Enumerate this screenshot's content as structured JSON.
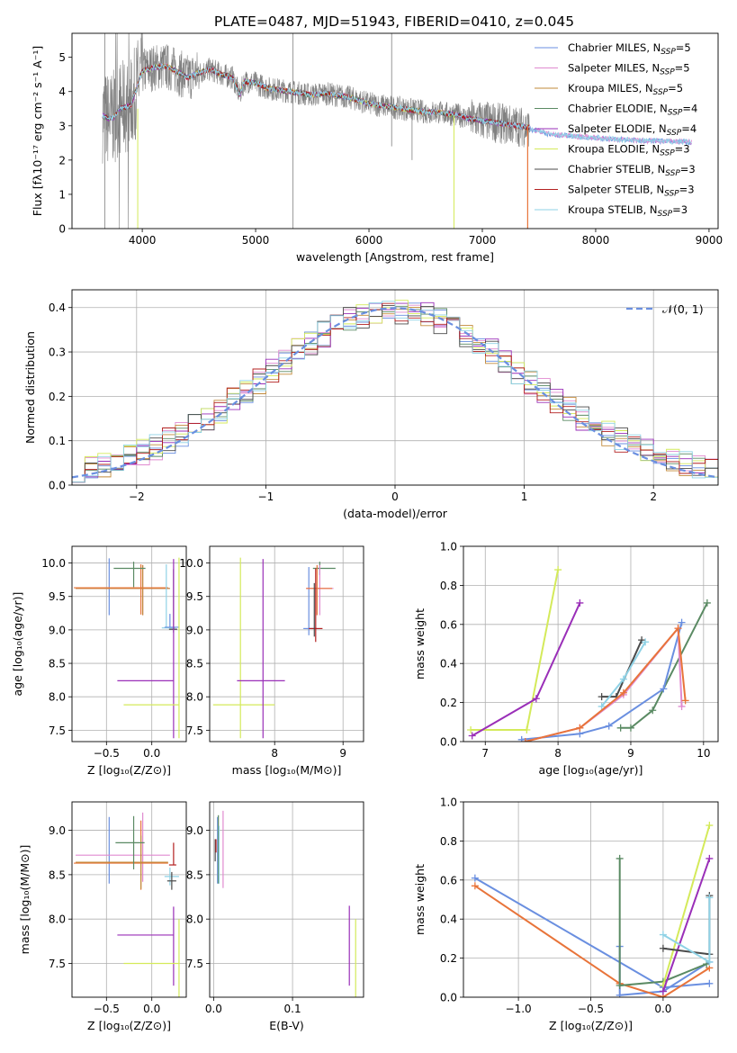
{
  "colors": {
    "Chabrier MILES": "#6a8fe0",
    "Salpeter MILES": "#e08ad0",
    "Kroupa MILES": "#c28a3a",
    "Chabrier ELODIE": "#5a8a63",
    "Salpeter ELODIE": "#9a2fb8",
    "Kroupa ELODIE": "#d4ea5a",
    "Chabrier STELIB": "#4a4a4a",
    "Salpeter STELIB": "#b32020",
    "Kroupa STELIB": "#8fd2e6",
    "orange": "#e8743a",
    "data": "#808080",
    "gaussian": "#6a8fe0"
  },
  "chart_data": [
    {
      "type": "line",
      "title": "PLATE=0487, MJD=51943, FIBERID=0410, z=0.045",
      "xlabel": "wavelength [Angstrom, rest frame]",
      "ylabel": "Flux [fλ10⁻¹⁷ erg cm⁻² s⁻¹ A⁻¹]",
      "xlim": [
        3380,
        9080
      ],
      "ylim": [
        0,
        5.7
      ],
      "xticks": [
        "4000",
        "5000",
        "6000",
        "7000",
        "8000",
        "9000"
      ],
      "yticks": [
        "0",
        "1",
        "2",
        "3",
        "4",
        "5"
      ],
      "legend": [
        "Chabrier MILES, N",
        "Salpeter MILES, N",
        "Kroupa MILES, N",
        "Chabrier ELODIE, N",
        "Salpeter ELODIE, N",
        "Kroupa ELODIE, N",
        "Chabrier STELIB, N",
        "Salpeter STELIB, N",
        "Kroupa STELIB, N"
      ],
      "legend_sub": "SSP",
      "legend_vals": [
        "=5",
        "=5",
        "=5",
        "=4",
        "=4",
        "=3",
        "=3",
        "=3",
        "=3"
      ],
      "legend_loc": "upper right",
      "continuum": {
        "x": [
          3650,
          3700,
          3750,
          3800,
          3900,
          4000,
          4100,
          4200,
          4300,
          4400,
          4500,
          4600,
          4700,
          4800,
          4860,
          4900,
          5000,
          5100,
          5200,
          5300,
          5400,
          5500,
          5600,
          5700,
          5800,
          5900,
          6000,
          6100,
          6200,
          6300,
          6400,
          6500,
          6600,
          6700,
          6800,
          6900,
          7000,
          7100,
          7200,
          7300,
          7400,
          7500,
          7600,
          7800,
          8000,
          8200,
          8400,
          8600,
          8800
        ],
        "y": [
          3.3,
          3.2,
          3.25,
          3.5,
          3.6,
          4.6,
          4.7,
          4.75,
          4.6,
          4.4,
          4.55,
          4.65,
          4.5,
          4.4,
          3.9,
          4.3,
          4.25,
          4.1,
          4.05,
          4.0,
          3.95,
          3.9,
          3.95,
          3.9,
          3.85,
          3.75,
          3.65,
          3.6,
          3.55,
          3.5,
          3.45,
          3.4,
          3.4,
          3.35,
          3.3,
          3.2,
          3.15,
          3.1,
          3.05,
          3.0,
          2.95,
          2.9,
          2.8,
          2.75,
          2.7,
          2.65,
          2.62,
          2.6,
          2.58
        ]
      },
      "model_ranges": [
        [
          3650,
          8850
        ],
        [
          3650,
          8850
        ],
        [
          3650,
          7420
        ],
        [
          3650,
          7420
        ],
        [
          3650,
          7420
        ],
        [
          3960,
          6750
        ],
        [
          3650,
          7420
        ],
        [
          3650,
          7420
        ],
        [
          3650,
          8850
        ]
      ],
      "data_range": [
        3650,
        7420
      ]
    },
    {
      "type": "step",
      "xlabel": "(data-model)/error",
      "ylabel": "Normed distribution",
      "xlim": [
        -2.5,
        2.5
      ],
      "ylim": [
        0,
        0.44
      ],
      "xticks": [
        "−2",
        "−1",
        "0",
        "1",
        "2"
      ],
      "yticks": [
        "0.0",
        "0.1",
        "0.2",
        "0.3",
        "0.4"
      ],
      "legend": [
        "𝒩(0, 1)"
      ],
      "legend_loc": "upper right",
      "bin_width": 0.1,
      "bin_start": -2.5
    },
    {
      "type": "errorbar",
      "xlabel": "Z [log₁₀(Z/Z⊙)]",
      "ylabel": "age  [log₁₀(age/yr)]",
      "xlim": [
        -0.88,
        0.38
      ],
      "ylim": [
        7.33,
        10.25
      ],
      "xticks": [
        "−0.5",
        "0.0"
      ],
      "yticks": [
        "7.5",
        "8.0",
        "8.5",
        "9.0",
        "9.5",
        "10.0"
      ],
      "points": [
        {
          "s": "Chabrier MILES",
          "x": -0.47,
          "y": 9.62,
          "xe": [
            0,
            0
          ],
          "ye": [
            0.4,
            0.45
          ]
        },
        {
          "s": "Salpeter MILES",
          "x": -0.1,
          "y": 9.62,
          "xe": [
            0.74,
            0.3
          ],
          "ye": [
            0.4,
            0.35
          ]
        },
        {
          "s": "Kroupa MILES",
          "x": -0.1,
          "y": 9.62,
          "xe": [
            0.74,
            0.3
          ],
          "ye": [
            0.4,
            0.35
          ]
        },
        {
          "s": "orange",
          "x": -0.12,
          "y": 9.63,
          "xe": [
            0.74,
            0.3
          ],
          "ye": [
            0.4,
            0.35
          ]
        },
        {
          "s": "Chabrier ELODIE",
          "x": -0.2,
          "y": 9.92,
          "xe": [
            0.22,
            0.13
          ],
          "ye": [
            0.28,
            0.1
          ]
        },
        {
          "s": "Kroupa STELIB",
          "x": 0.16,
          "y": 9.03,
          "xe": [
            0.05,
            0.1
          ],
          "ye": [
            0.0,
            0.95
          ]
        },
        {
          "s": "Chabrier STELIB",
          "x": 0.24,
          "y": 9.01,
          "xe": [
            0.05,
            0.04
          ],
          "ye": [
            0.05,
            0.9
          ]
        },
        {
          "s": "Chabrier MILES",
          "x": 0.2,
          "y": 9.04,
          "xe": [
            0.06,
            0.1
          ],
          "ye": [
            0.0,
            0.2
          ]
        },
        {
          "s": "Salpeter ELODIE",
          "x": 0.24,
          "y": 8.24,
          "xe": [
            0.62,
            0.0
          ],
          "ye": [
            0.86,
            1.82
          ]
        },
        {
          "s": "Kroupa ELODIE",
          "x": 0.3,
          "y": 7.88,
          "xe": [
            0.61,
            0.0
          ],
          "ye": [
            0.5,
            2.2
          ]
        }
      ]
    },
    {
      "type": "errorbar",
      "xlabel": "mass [log₁₀(M/M⊙)]",
      "ylabel": "",
      "xlim": [
        7.05,
        9.3
      ],
      "ylim": [
        7.33,
        10.25
      ],
      "xticks": [
        "8",
        "9"
      ],
      "yticks": [
        "7.5",
        "8.0",
        "8.5",
        "9.0",
        "9.5",
        "10.0"
      ],
      "points": [
        {
          "s": "Kroupa ELODIE",
          "x": 7.5,
          "y": 7.88,
          "xe": [
            0.4,
            0.5
          ],
          "ye": [
            0.5,
            2.2
          ]
        },
        {
          "s": "Salpeter ELODIE",
          "x": 7.83,
          "y": 8.24,
          "xe": [
            0.38,
            0.32
          ],
          "ye": [
            0.86,
            1.82
          ]
        },
        {
          "s": "Chabrier MILES",
          "x": 8.5,
          "y": 9.02,
          "xe": [
            0.08,
            0.12
          ],
          "ye": [
            0.1,
            0.92
          ]
        },
        {
          "s": "Chabrier ELODIE",
          "x": 8.66,
          "y": 9.92,
          "xe": [
            0.1,
            0.23
          ],
          "ye": [
            0.1,
            0.1
          ]
        },
        {
          "s": "Salpeter MILES",
          "x": 8.66,
          "y": 9.62,
          "xe": [
            0.2,
            0.2
          ],
          "ye": [
            0.4,
            0.35
          ]
        },
        {
          "s": "orange",
          "x": 8.62,
          "y": 9.62,
          "xe": [
            0.16,
            0.22
          ],
          "ye": [
            0.4,
            0.35
          ]
        },
        {
          "s": "Salpeter STELIB",
          "x": 8.6,
          "y": 9.02,
          "xe": [
            0.1,
            0.1
          ],
          "ye": [
            0.2,
            0.9
          ]
        },
        {
          "s": "Chabrier STELIB",
          "x": 8.58,
          "y": 9.3,
          "xe": [
            0.0,
            0.0
          ],
          "ye": [
            0.4,
            0.4
          ]
        }
      ]
    },
    {
      "type": "line",
      "xlabel": "age  [log₁₀(age/yr)]",
      "ylabel": "mass weight",
      "xlim": [
        6.7,
        10.2
      ],
      "ylim": [
        0,
        1.0
      ],
      "xticks": [
        "7",
        "8",
        "9",
        "10"
      ],
      "yticks": [
        "0.0",
        "0.2",
        "0.4",
        "0.6",
        "0.8",
        "1.0"
      ],
      "series": [
        {
          "s": "Kroupa ELODIE",
          "x": [
            6.8,
            7.57,
            8.0
          ],
          "y": [
            0.06,
            0.06,
            0.88
          ]
        },
        {
          "s": "Salpeter ELODIE",
          "x": [
            6.82,
            7.7,
            8.3
          ],
          "y": [
            0.03,
            0.22,
            0.71
          ]
        },
        {
          "s": "Chabrier ELODIE",
          "x": [
            8.86,
            9.0,
            9.3,
            10.05
          ],
          "y": [
            0.07,
            0.07,
            0.16,
            0.71
          ]
        },
        {
          "s": "Chabrier STELIB",
          "x": [
            8.6,
            8.8,
            9.15
          ],
          "y": [
            0.23,
            0.23,
            0.52
          ]
        },
        {
          "s": "Kroupa STELIB",
          "x": [
            8.6,
            8.9,
            9.2
          ],
          "y": [
            0.18,
            0.32,
            0.51
          ]
        },
        {
          "s": "Chabrier MILES",
          "x": [
            7.5,
            8.3,
            8.7,
            9.45,
            9.7
          ],
          "y": [
            0.01,
            0.04,
            0.08,
            0.27,
            0.61
          ]
        },
        {
          "s": "Salpeter MILES",
          "x": [
            7.55,
            8.3,
            8.9,
            9.65,
            9.7
          ],
          "y": [
            0.0,
            0.07,
            0.24,
            0.58,
            0.18
          ]
        },
        {
          "s": "orange",
          "x": [
            7.55,
            8.3,
            8.9,
            9.65,
            9.75
          ],
          "y": [
            0.0,
            0.07,
            0.25,
            0.58,
            0.21
          ]
        }
      ]
    },
    {
      "type": "errorbar",
      "xlabel": "Z [log₁₀(Z/Z⊙)]",
      "ylabel": "mass [log₁₀(M/M⊙)]",
      "xlim": [
        -0.88,
        0.38
      ],
      "ylim": [
        7.12,
        9.32
      ],
      "xticks": [
        "−0.5",
        "0.0"
      ],
      "yticks": [
        "7.5",
        "8.0",
        "8.5",
        "9.0"
      ],
      "points": [
        {
          "s": "Chabrier MILES",
          "x": -0.47,
          "y": 8.85,
          "xe": [
            0,
            0
          ],
          "ye": [
            0.45,
            0.3
          ]
        },
        {
          "s": "Salpeter MILES",
          "x": -0.1,
          "y": 8.72,
          "xe": [
            0.74,
            0.3
          ],
          "ye": [
            0.3,
            0.48
          ]
        },
        {
          "s": "orange",
          "x": -0.12,
          "y": 8.63,
          "xe": [
            0.74,
            0.3
          ],
          "ye": [
            0.3,
            0.48
          ]
        },
        {
          "s": "Kroupa MILES",
          "x": -0.12,
          "y": 8.64,
          "xe": [
            0.72,
            0.3
          ],
          "ye": [
            0.3,
            0.3
          ]
        },
        {
          "s": "Chabrier ELODIE",
          "x": -0.2,
          "y": 8.86,
          "xe": [
            0.2,
            0.12
          ],
          "ye": [
            0.3,
            0.3
          ]
        },
        {
          "s": "Salpeter STELIB",
          "x": 0.24,
          "y": 8.61,
          "xe": [
            0.05,
            0.03
          ],
          "ye": [
            0.0,
            0.25
          ]
        },
        {
          "s": "Kroupa STELIB",
          "x": 0.2,
          "y": 8.48,
          "xe": [
            0.06,
            0.1
          ],
          "ye": [
            0.1,
            0.1
          ]
        },
        {
          "s": "Chabrier STELIB",
          "x": 0.22,
          "y": 8.43,
          "xe": [
            0.05,
            0.05
          ],
          "ye": [
            0.1,
            0.1
          ]
        },
        {
          "s": "Salpeter ELODIE",
          "x": 0.24,
          "y": 7.82,
          "xe": [
            0.62,
            0.0
          ],
          "ye": [
            0.57,
            0.32
          ]
        },
        {
          "s": "Kroupa ELODIE",
          "x": 0.3,
          "y": 7.5,
          "xe": [
            0.61,
            0.0
          ],
          "ye": [
            0.38,
            0.5
          ]
        }
      ]
    },
    {
      "type": "errorbar",
      "xlabel": "E(B-V)",
      "ylabel": "",
      "xlim": [
        -0.005,
        0.19
      ],
      "ylim": [
        7.12,
        9.32
      ],
      "xticks": [
        "0.0",
        "0.1"
      ],
      "yticks": [
        "7.5",
        "8.0",
        "8.5",
        "9.0"
      ],
      "points": [
        {
          "s": "Chabrier STELIB",
          "x": 0.002,
          "y": 8.75,
          "xe": [
            0,
            0
          ],
          "ye": [
            0.1,
            0.15
          ]
        },
        {
          "s": "Salpeter STELIB",
          "x": 0.003,
          "y": 8.8,
          "xe": [
            0,
            0
          ],
          "ye": [
            0.05,
            0.1
          ]
        },
        {
          "s": "Chabrier MILES",
          "x": 0.005,
          "y": 8.75,
          "xe": [
            0,
            0
          ],
          "ye": [
            0.35,
            0.4
          ]
        },
        {
          "s": "Chabrier ELODIE",
          "x": 0.006,
          "y": 8.75,
          "xe": [
            0,
            0
          ],
          "ye": [
            0.35,
            0.42
          ]
        },
        {
          "s": "Kroupa STELIB",
          "x": 0.007,
          "y": 8.7,
          "xe": [
            0,
            0
          ],
          "ye": [
            0.3,
            0.35
          ]
        },
        {
          "s": "Salpeter MILES",
          "x": 0.012,
          "y": 8.8,
          "xe": [
            0,
            0
          ],
          "ye": [
            0.45,
            0.42
          ]
        },
        {
          "s": "Salpeter ELODIE",
          "x": 0.172,
          "y": 7.7,
          "xe": [
            0,
            0
          ],
          "ye": [
            0.45,
            0.45
          ]
        },
        {
          "s": "Kroupa ELODIE",
          "x": 0.18,
          "y": 7.55,
          "xe": [
            0,
            0
          ],
          "ye": [
            0.45,
            0.45
          ]
        }
      ]
    },
    {
      "type": "line",
      "xlabel": "Z [log₁₀(Z/Z⊙)]",
      "ylabel": "mass weight",
      "xlim": [
        -1.38,
        0.38
      ],
      "ylim": [
        0,
        1.0
      ],
      "xticks": [
        "−1.0",
        "−0.5",
        "0.0"
      ],
      "yticks": [
        "0.0",
        "0.2",
        "0.4",
        "0.6",
        "0.8",
        "1.0"
      ],
      "series": [
        {
          "s": "Chabrier MILES",
          "x": [
            -1.3,
            0.0,
            0.32
          ],
          "y": [
            0.61,
            0.05,
            0.07
          ]
        },
        {
          "s": "Chabrier MILES",
          "x": [
            -0.3,
            -0.3,
            0.0,
            0.32
          ],
          "y": [
            0.26,
            0.01,
            0.03,
            0.18
          ]
        },
        {
          "s": "orange",
          "x": [
            -1.3,
            -0.3,
            0.0,
            0.32
          ],
          "y": [
            0.57,
            0.07,
            0.0,
            0.15
          ]
        },
        {
          "s": "Chabrier ELODIE",
          "x": [
            -0.3,
            -0.3,
            0.0,
            0.3
          ],
          "y": [
            0.71,
            0.06,
            0.08,
            0.17
          ]
        },
        {
          "s": "Kroupa ELODIE",
          "x": [
            0.0,
            0.32
          ],
          "y": [
            0.06,
            0.88
          ]
        },
        {
          "s": "Salpeter ELODIE",
          "x": [
            0.0,
            0.32
          ],
          "y": [
            0.03,
            0.71
          ]
        },
        {
          "s": "Chabrier STELIB",
          "x": [
            0.0,
            0.32,
            0.32
          ],
          "y": [
            0.25,
            0.22,
            0.52
          ]
        },
        {
          "s": "Kroupa STELIB",
          "x": [
            0.0,
            0.32,
            0.32
          ],
          "y": [
            0.32,
            0.18,
            0.51
          ]
        }
      ]
    }
  ]
}
